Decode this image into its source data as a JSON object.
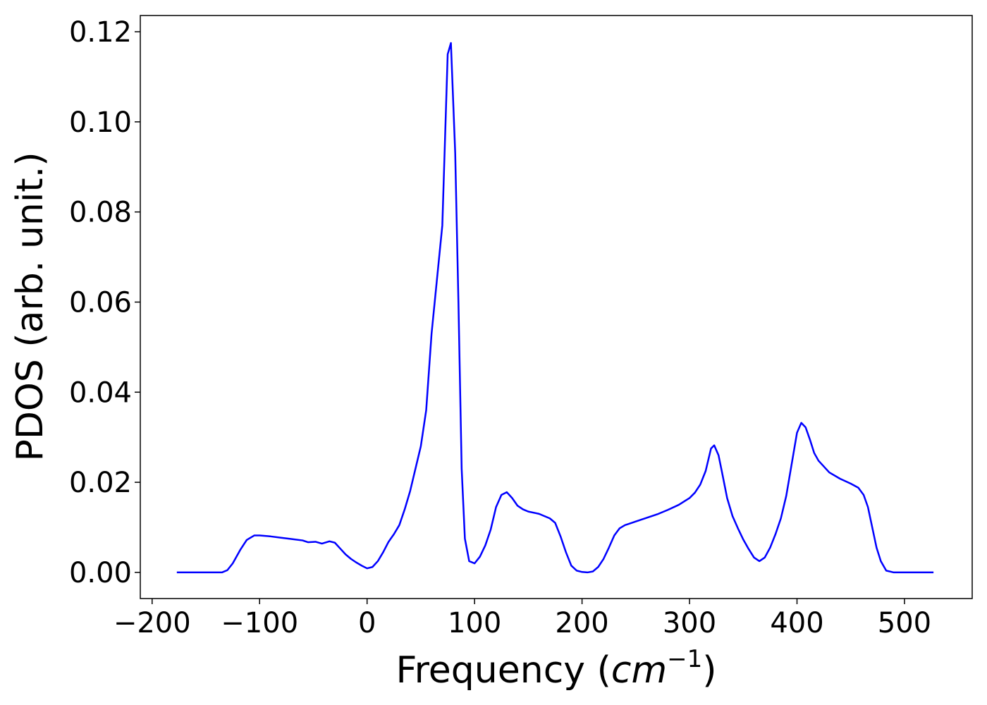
{
  "chart_data": {
    "type": "line",
    "ylabel": "PDOS (arb. unit.)",
    "xlabel_parts": [
      "Frequency (",
      "cm",
      "−1",
      ")"
    ],
    "xlim": [
      -211,
      563
    ],
    "ylim": [
      -0.0058,
      0.1236
    ],
    "xticks": [
      {
        "value": -200,
        "label": "−200"
      },
      {
        "value": -100,
        "label": "−100"
      },
      0,
      100,
      200,
      300,
      400,
      500
    ],
    "yticks": [
      {
        "value": 0,
        "label": "0.00"
      },
      {
        "value": 0.02,
        "label": "0.02"
      },
      {
        "value": 0.04,
        "label": "0.04"
      },
      {
        "value": 0.06,
        "label": "0.06"
      },
      {
        "value": 0.08,
        "label": "0.08"
      },
      {
        "value": 0.1,
        "label": "0.10"
      },
      {
        "value": 0.12,
        "label": "0.12"
      }
    ],
    "grid": false,
    "x": [
      -177,
      -135,
      -130,
      -125,
      -118,
      -112,
      -105,
      -100,
      -90,
      -80,
      -70,
      -60,
      -55,
      -48,
      -42,
      -35,
      -30,
      -25,
      -20,
      -15,
      -10,
      -5,
      0,
      5,
      10,
      15,
      20,
      25,
      30,
      35,
      40,
      45,
      50,
      55,
      60,
      65,
      70,
      75,
      78,
      82,
      85,
      88,
      91,
      95,
      100,
      105,
      110,
      115,
      120,
      125,
      130,
      135,
      140,
      145,
      150,
      160,
      170,
      175,
      180,
      185,
      190,
      195,
      200,
      205,
      210,
      215,
      220,
      225,
      230,
      235,
      240,
      250,
      260,
      270,
      280,
      290,
      300,
      305,
      310,
      315,
      320,
      323,
      327,
      330,
      335,
      340,
      345,
      350,
      355,
      360,
      365,
      370,
      375,
      380,
      385,
      390,
      395,
      400,
      404,
      408,
      412,
      416,
      420,
      430,
      440,
      450,
      457,
      462,
      466,
      470,
      474,
      478,
      483,
      490,
      500,
      527
    ],
    "series": [
      {
        "name": "PDOS",
        "color": "#0000ff",
        "values": [
          0,
          0,
          0.0005,
          0.002,
          0.005,
          0.0072,
          0.0082,
          0.0082,
          0.008,
          0.0077,
          0.0074,
          0.0071,
          0.0067,
          0.0068,
          0.0064,
          0.0069,
          0.0066,
          0.0053,
          0.004,
          0.003,
          0.0022,
          0.0015,
          0.0009,
          0.0012,
          0.0025,
          0.0045,
          0.0068,
          0.0085,
          0.0105,
          0.014,
          0.018,
          0.023,
          0.028,
          0.036,
          0.053,
          0.065,
          0.077,
          0.115,
          0.1175,
          0.093,
          0.06,
          0.023,
          0.0075,
          0.0025,
          0.002,
          0.0035,
          0.006,
          0.0095,
          0.0145,
          0.0172,
          0.0178,
          0.0165,
          0.0148,
          0.014,
          0.0135,
          0.013,
          0.012,
          0.011,
          0.008,
          0.0045,
          0.0015,
          0.0004,
          0.0001,
          0,
          0.0002,
          0.0012,
          0.003,
          0.0055,
          0.0082,
          0.0098,
          0.0105,
          0.0113,
          0.0121,
          0.0129,
          0.0139,
          0.015,
          0.0165,
          0.0177,
          0.0195,
          0.0225,
          0.0275,
          0.0282,
          0.026,
          0.0225,
          0.0165,
          0.0125,
          0.0098,
          0.0073,
          0.0052,
          0.0033,
          0.0025,
          0.0033,
          0.0055,
          0.0085,
          0.012,
          0.017,
          0.024,
          0.031,
          0.0332,
          0.0322,
          0.0295,
          0.0265,
          0.0248,
          0.0222,
          0.0208,
          0.0197,
          0.0188,
          0.0172,
          0.0145,
          0.01,
          0.0055,
          0.0025,
          0.0004,
          0,
          0,
          0
        ]
      }
    ]
  }
}
